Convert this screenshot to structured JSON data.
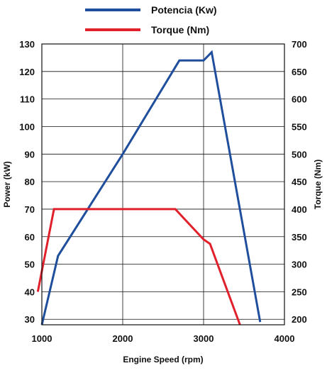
{
  "chart_data": {
    "type": "line",
    "xlabel": "Engine Speed (rpm)",
    "ylabel_left": "Power (kW)",
    "ylabel_right": "Torque (Nm)",
    "xlim": [
      1000,
      4000
    ],
    "ylim_left": [
      28,
      130
    ],
    "ylim_right": [
      190,
      700
    ],
    "x_ticks": [
      1000,
      2000,
      3000,
      4000
    ],
    "y_left_ticks": [
      30,
      40,
      50,
      60,
      70,
      80,
      90,
      100,
      110,
      120,
      130
    ],
    "y_right_ticks": [
      200,
      250,
      300,
      350,
      400,
      450,
      500,
      550,
      600,
      650,
      700
    ],
    "grid": true,
    "legend_position": "top-center",
    "series": [
      {
        "name": "Potencia (Kw)",
        "color": "#1f4e9c",
        "axis": "left",
        "x": [
          1000,
          1200,
          2000,
          2700,
          3000,
          3100,
          3700
        ],
        "y": [
          28,
          53,
          90,
          124,
          124,
          127,
          29
        ]
      },
      {
        "name": "Torque (Nm)",
        "color": "#e0202a",
        "axis": "right",
        "x": [
          950,
          1150,
          2000,
          2650,
          3000,
          3080,
          3450
        ],
        "y": [
          250,
          400,
          400,
          400,
          345,
          337,
          190
        ]
      }
    ]
  }
}
